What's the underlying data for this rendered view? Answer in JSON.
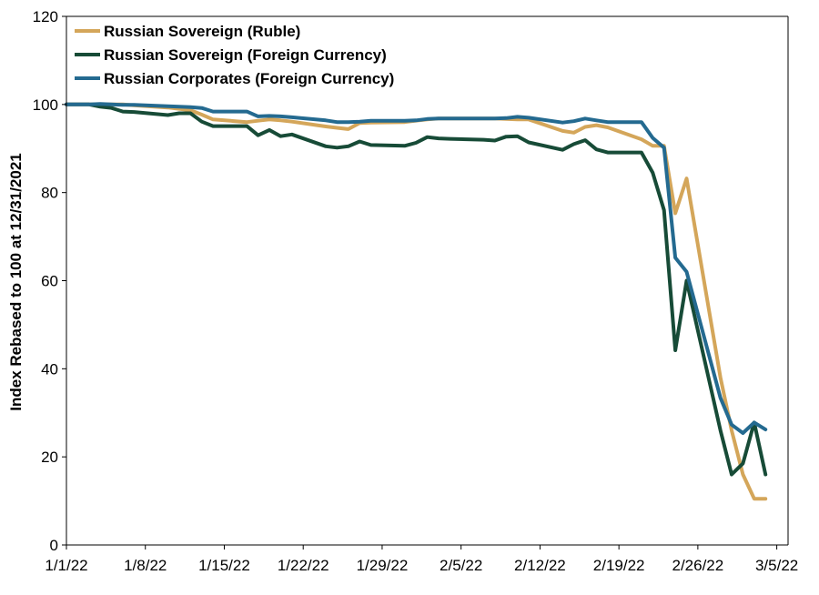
{
  "chart_data": {
    "type": "line",
    "ylabel": "Index Rebased to 100 at 12/31/2021",
    "xlabel": "",
    "title": "",
    "x_dates": [
      "2022-01-01",
      "2022-01-03",
      "2022-01-04",
      "2022-01-05",
      "2022-01-06",
      "2022-01-07",
      "2022-01-10",
      "2022-01-11",
      "2022-01-12",
      "2022-01-13",
      "2022-01-14",
      "2022-01-17",
      "2022-01-18",
      "2022-01-19",
      "2022-01-20",
      "2022-01-21",
      "2022-01-24",
      "2022-01-25",
      "2022-01-26",
      "2022-01-27",
      "2022-01-28",
      "2022-01-31",
      "2022-02-01",
      "2022-02-02",
      "2022-02-03",
      "2022-02-04",
      "2022-02-07",
      "2022-02-08",
      "2022-02-09",
      "2022-02-10",
      "2022-02-11",
      "2022-02-14",
      "2022-02-15",
      "2022-02-16",
      "2022-02-17",
      "2022-02-18",
      "2022-02-21",
      "2022-02-22",
      "2022-02-23",
      "2022-02-24",
      "2022-02-25",
      "2022-02-28",
      "2022-03-01",
      "2022-03-02",
      "2022-03-03",
      "2022-03-04"
    ],
    "x_tick_labels": [
      "1/1/22",
      "1/8/22",
      "1/15/22",
      "1/22/22",
      "1/29/22",
      "2/5/22",
      "2/12/22",
      "2/19/22",
      "2/26/22",
      "3/5/22"
    ],
    "x_range": [
      "2022-01-01",
      "2022-03-06"
    ],
    "ylim": [
      0,
      120
    ],
    "y_ticks": [
      0,
      20,
      40,
      60,
      80,
      100,
      120
    ],
    "grid": false,
    "legend_position": "top-left",
    "series": [
      {
        "name": "Russian Sovereign (Ruble)",
        "color": "#D4A65A",
        "dates": [
          "2022-01-01",
          "2022-01-03",
          "2022-01-04",
          "2022-01-05",
          "2022-01-06",
          "2022-01-07",
          "2022-01-10",
          "2022-01-11",
          "2022-01-12",
          "2022-01-13",
          "2022-01-14",
          "2022-01-17",
          "2022-01-18",
          "2022-01-19",
          "2022-01-20",
          "2022-01-21",
          "2022-01-24",
          "2022-01-25",
          "2022-01-26",
          "2022-01-27",
          "2022-01-28",
          "2022-01-31",
          "2022-02-01",
          "2022-02-02",
          "2022-02-03",
          "2022-02-04",
          "2022-02-07",
          "2022-02-08",
          "2022-02-09",
          "2022-02-10",
          "2022-02-11",
          "2022-02-14",
          "2022-02-15",
          "2022-02-16",
          "2022-02-17",
          "2022-02-18",
          "2022-02-21",
          "2022-02-22",
          "2022-02-23",
          "2022-02-24",
          "2022-02-25",
          "2022-02-28",
          "2022-03-01",
          "2022-03-02",
          "2022-03-03",
          "2022-03-04"
        ],
        "values": [
          100,
          100,
          100,
          100,
          100,
          99.8,
          99.3,
          99,
          98.7,
          97.7,
          96.6,
          96,
          96.3,
          96.6,
          96.4,
          96.1,
          95,
          94.7,
          94.4,
          95.8,
          95.9,
          96,
          96.3,
          96.6,
          96.8,
          96.8,
          96.8,
          96.8,
          96.7,
          96.6,
          96.6,
          94,
          93.6,
          94.9,
          95.3,
          94.8,
          92.1,
          90.6,
          90.6,
          75.3,
          83.2,
          38,
          26,
          16,
          10.5,
          10.5
        ]
      },
      {
        "name": "Russian Sovereign (Foreign Currency)",
        "color": "#174B37",
        "dates": [
          "2022-01-01",
          "2022-01-03",
          "2022-01-04",
          "2022-01-05",
          "2022-01-06",
          "2022-01-07",
          "2022-01-10",
          "2022-01-11",
          "2022-01-12",
          "2022-01-13",
          "2022-01-14",
          "2022-01-17",
          "2022-01-18",
          "2022-01-19",
          "2022-01-20",
          "2022-01-21",
          "2022-01-24",
          "2022-01-25",
          "2022-01-26",
          "2022-01-27",
          "2022-01-28",
          "2022-01-31",
          "2022-02-01",
          "2022-02-02",
          "2022-02-03",
          "2022-02-04",
          "2022-02-07",
          "2022-02-08",
          "2022-02-09",
          "2022-02-10",
          "2022-02-11",
          "2022-02-14",
          "2022-02-15",
          "2022-02-16",
          "2022-02-17",
          "2022-02-18",
          "2022-02-21",
          "2022-02-22",
          "2022-02-23",
          "2022-02-24",
          "2022-02-25",
          "2022-02-28",
          "2022-03-01",
          "2022-03-02",
          "2022-03-03",
          "2022-03-04"
        ],
        "values": [
          100,
          100,
          99.5,
          99.2,
          98.4,
          98.3,
          97.6,
          98,
          98,
          96.1,
          95.1,
          95.1,
          93,
          94.2,
          92.8,
          93.2,
          90.5,
          90.2,
          90.5,
          91.6,
          90.8,
          90.6,
          91.3,
          92.6,
          92.3,
          92.2,
          92,
          91.8,
          92.7,
          92.8,
          91.4,
          89.7,
          91,
          91.9,
          89.8,
          89.1,
          89.1,
          84.5,
          76,
          44.2,
          60,
          26,
          16,
          18.5,
          27.8,
          16
        ]
      },
      {
        "name": "Russian Corporates (Foreign Currency)",
        "color": "#246A90",
        "dates": [
          "2022-01-01",
          "2022-01-03",
          "2022-01-04",
          "2022-01-05",
          "2022-01-06",
          "2022-01-07",
          "2022-01-10",
          "2022-01-11",
          "2022-01-12",
          "2022-01-13",
          "2022-01-14",
          "2022-01-17",
          "2022-01-18",
          "2022-01-19",
          "2022-01-20",
          "2022-01-21",
          "2022-01-24",
          "2022-01-25",
          "2022-01-26",
          "2022-01-27",
          "2022-01-28",
          "2022-01-31",
          "2022-02-01",
          "2022-02-02",
          "2022-02-03",
          "2022-02-04",
          "2022-02-07",
          "2022-02-08",
          "2022-02-09",
          "2022-02-10",
          "2022-02-11",
          "2022-02-14",
          "2022-02-15",
          "2022-02-16",
          "2022-02-17",
          "2022-02-18",
          "2022-02-21",
          "2022-02-22",
          "2022-02-23",
          "2022-02-24",
          "2022-02-25",
          "2022-02-28",
          "2022-03-01",
          "2022-03-02",
          "2022-03-03",
          "2022-03-04"
        ],
        "values": [
          100,
          100,
          100.1,
          100,
          99.9,
          99.9,
          99.6,
          99.5,
          99.4,
          99.2,
          98.4,
          98.4,
          97.3,
          97.4,
          97.3,
          97.1,
          96.4,
          96,
          96,
          96.1,
          96.3,
          96.3,
          96.4,
          96.7,
          96.8,
          96.8,
          96.8,
          96.8,
          96.9,
          97.2,
          97,
          95.9,
          96.2,
          96.8,
          96.4,
          96,
          96,
          92.4,
          90.2,
          65.2,
          62,
          33.4,
          27.3,
          25.4,
          27.8,
          26.2
        ]
      }
    ]
  }
}
